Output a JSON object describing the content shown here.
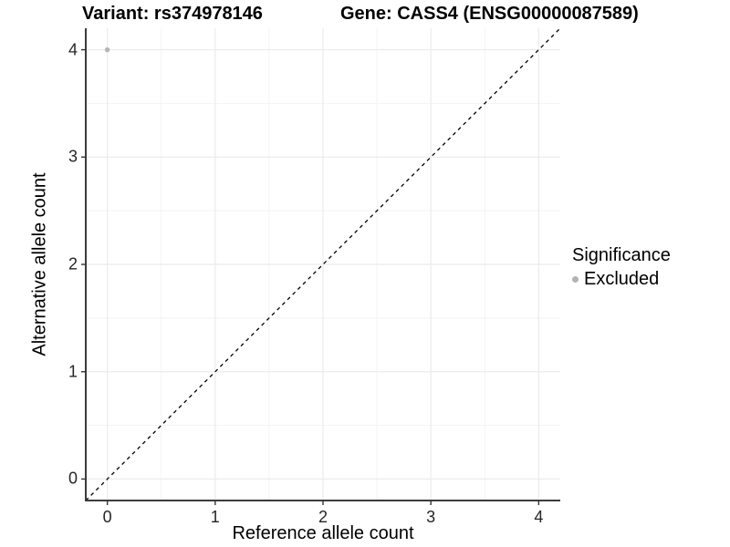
{
  "title": {
    "variant": "Variant: rs374978146",
    "gene": "Gene: CASS4 (ENSG00000087589)"
  },
  "chart_data": {
    "type": "scatter",
    "title": "Variant: rs374978146   Gene: CASS4 (ENSG00000087589)",
    "xlabel": "Reference allele count",
    "ylabel": "Alternative allele count",
    "xlim": [
      -0.2,
      4.2
    ],
    "ylim": [
      -0.2,
      4.2
    ],
    "x_ticks": [
      0,
      1,
      2,
      3,
      4
    ],
    "y_ticks": [
      0,
      1,
      2,
      3,
      4
    ],
    "minor_ticks": [
      0.5,
      1.5,
      2.5,
      3.5
    ],
    "grid": true,
    "points": [
      {
        "x": 0,
        "y": 4,
        "series": "Excluded"
      }
    ],
    "identity_line": {
      "style": "dashed",
      "from": [
        -0.2,
        -0.2
      ],
      "to": [
        4.2,
        4.2
      ]
    },
    "legend": {
      "title": "Significance",
      "position": "right",
      "items": [
        {
          "label": "Excluded",
          "color": "#b3b3b3"
        }
      ]
    }
  },
  "colors": {
    "point": "#b5b5b5",
    "grid_major": "#ebebeb",
    "grid_minor": "#f3f3f3",
    "axis_line": "#3c3c3c",
    "tick_mark": "#333333",
    "identity_line": "#000000",
    "background": "#ffffff"
  }
}
